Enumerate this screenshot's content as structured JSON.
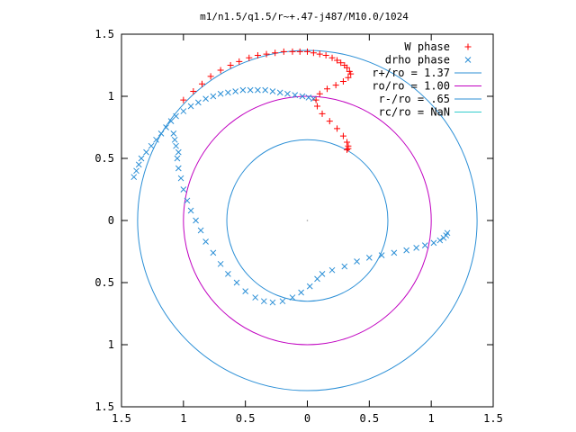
{
  "chart_data": {
    "type": "scatter",
    "title": "m1/n1.5/q1.5/r~+.47-j487/M10.0/1024",
    "xlim": [
      -1.5,
      1.5
    ],
    "ylim": [
      -1.5,
      1.5
    ],
    "x_ticks": [
      -1.5,
      -1,
      -0.5,
      0,
      0.5,
      1,
      1.5
    ],
    "x_tick_labels": [
      "1.5",
      "1",
      "0.5",
      "0",
      "0.5",
      "1",
      "1.5"
    ],
    "y_ticks": [
      1.5,
      1,
      0.5,
      0,
      -0.5,
      -1,
      -1.5
    ],
    "y_tick_labels": [
      "1.5",
      "1",
      "0.5",
      "0",
      "0.5",
      "1",
      "1.5"
    ],
    "legend_position": "top-right",
    "series": [
      {
        "name": "W phase",
        "kind": "points",
        "marker": "plus",
        "color": "#ff0000",
        "x": [
          -1.0,
          -0.92,
          -0.85,
          -0.78,
          -0.7,
          -0.62,
          -0.55,
          -0.47,
          -0.4,
          -0.33,
          -0.26,
          -0.19,
          -0.12,
          -0.06,
          0.0,
          0.05,
          0.1,
          0.15,
          0.2,
          0.24,
          0.27,
          0.3,
          0.32,
          0.34,
          0.35,
          0.33,
          0.29,
          0.23,
          0.16,
          0.1,
          0.07,
          0.08,
          0.12,
          0.18,
          0.24,
          0.29,
          0.32,
          0.33,
          0.33,
          0.32
        ],
        "y": [
          0.97,
          1.04,
          1.1,
          1.16,
          1.21,
          1.25,
          1.28,
          1.31,
          1.33,
          1.34,
          1.35,
          1.36,
          1.36,
          1.36,
          1.36,
          1.35,
          1.34,
          1.33,
          1.31,
          1.29,
          1.27,
          1.25,
          1.23,
          1.2,
          1.18,
          1.15,
          1.12,
          1.09,
          1.06,
          1.02,
          0.97,
          0.92,
          0.86,
          0.8,
          0.74,
          0.68,
          0.63,
          0.6,
          0.58,
          0.57
        ]
      },
      {
        "name": "drho phase",
        "kind": "points",
        "marker": "cross",
        "color": "#2b8fd6",
        "x": [
          -1.05,
          -1.04,
          -1.02,
          -1.0,
          -0.97,
          -0.94,
          -0.9,
          -0.86,
          -0.82,
          -0.76,
          -0.7,
          -0.64,
          -0.57,
          -0.5,
          -0.42,
          -0.35,
          -0.28,
          -0.2,
          -0.12,
          -0.05,
          0.02,
          0.08,
          0.12,
          0.2,
          0.3,
          0.4,
          0.5,
          0.6,
          0.7,
          0.8,
          0.88,
          0.95,
          1.02,
          1.07,
          1.1,
          1.12,
          1.13,
          -1.4,
          -1.38,
          -1.36,
          -1.34,
          -1.3,
          -1.26,
          -1.22,
          -1.18,
          -1.14,
          -1.1,
          -1.06,
          -1.0,
          -0.94,
          -0.88,
          -0.82,
          -0.76,
          -0.7,
          -0.64,
          -0.58,
          -0.52,
          -0.46,
          -0.4,
          -0.34,
          -0.28,
          -0.22,
          -0.16,
          -0.1,
          -0.04,
          0.01,
          0.05,
          -1.08,
          -1.07,
          -1.06,
          -1.04
        ],
        "y": [
          0.5,
          0.42,
          0.34,
          0.25,
          0.16,
          0.08,
          0.0,
          -0.08,
          -0.17,
          -0.26,
          -0.35,
          -0.43,
          -0.5,
          -0.57,
          -0.62,
          -0.65,
          -0.66,
          -0.65,
          -0.62,
          -0.58,
          -0.53,
          -0.47,
          -0.43,
          -0.4,
          -0.37,
          -0.33,
          -0.3,
          -0.28,
          -0.26,
          -0.24,
          -0.22,
          -0.2,
          -0.18,
          -0.16,
          -0.14,
          -0.12,
          -0.1,
          0.35,
          0.4,
          0.45,
          0.5,
          0.55,
          0.6,
          0.65,
          0.7,
          0.75,
          0.8,
          0.84,
          0.88,
          0.92,
          0.95,
          0.98,
          1.0,
          1.02,
          1.03,
          1.04,
          1.05,
          1.05,
          1.05,
          1.05,
          1.04,
          1.03,
          1.02,
          1.01,
          1.0,
          0.99,
          0.98,
          0.7,
          0.65,
          0.6,
          0.55
        ]
      },
      {
        "name": "r+/ro = 1.37",
        "kind": "circle",
        "radius": 1.37,
        "color": "#2b8fd6"
      },
      {
        "name": "ro/ro = 1.00",
        "kind": "circle",
        "radius": 1.0,
        "color": "#c000c0"
      },
      {
        "name": "r-/ro = .65",
        "kind": "circle",
        "radius": 0.65,
        "color": "#2b8fd6"
      },
      {
        "name": "rc/ro = NaN",
        "kind": "circle",
        "radius": null,
        "color": "#33cccc"
      }
    ]
  }
}
